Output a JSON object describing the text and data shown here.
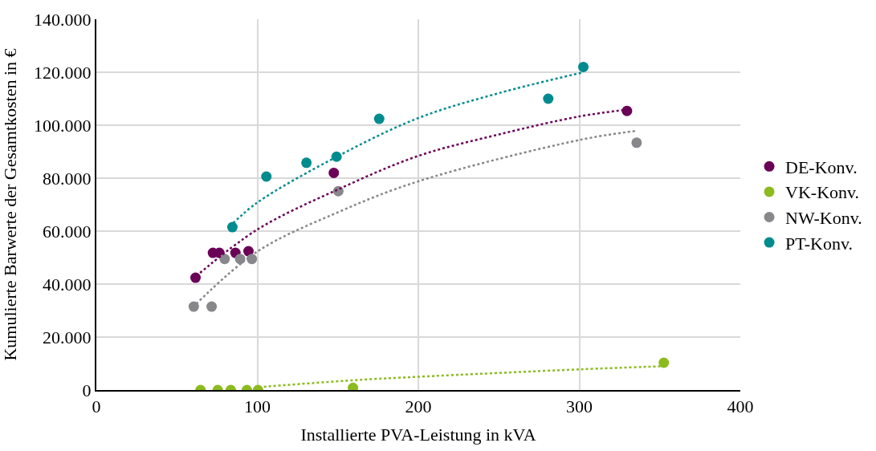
{
  "chart_data": {
    "type": "scatter",
    "xlabel": "Installierte PVA-Leistung in kVA",
    "ylabel": "Kumulierte Barwerte der Gesamtkosten in €",
    "xlim": [
      0,
      400
    ],
    "xticks": [
      0,
      100,
      200,
      300,
      400
    ],
    "ylim": [
      0,
      140000
    ],
    "yticks": [
      {
        "value": 0,
        "label": "0"
      },
      {
        "value": 20000,
        "label": "20.000"
      },
      {
        "value": 40000,
        "label": "40.000"
      },
      {
        "value": 60000,
        "label": "60.000"
      },
      {
        "value": 80000,
        "label": "80.000"
      },
      {
        "value": 100000,
        "label": "100.000"
      },
      {
        "value": 120000,
        "label": "120.000"
      },
      {
        "value": 140000,
        "label": "140.000"
      }
    ],
    "grid": true,
    "legend": "right",
    "marker": "circle",
    "series": [
      {
        "name": "DE-Konv.",
        "color": "#6b0057",
        "x": [
          61.6,
          72.4,
          76.4,
          86.4,
          94.5,
          147.5,
          329.6
        ],
        "values": [
          42400,
          51800,
          51800,
          51800,
          52400,
          82000,
          105400
        ]
      },
      {
        "name": "VK-Konv.",
        "color": "#8cbb1f",
        "x": [
          64.7,
          75.4,
          83.5,
          93.5,
          100.4,
          159.4,
          352.5
        ],
        "values": [
          0,
          0,
          0,
          0,
          0,
          800,
          10300
        ]
      },
      {
        "name": "NW-Konv.",
        "color": "#87878c",
        "x": [
          60.5,
          71.6,
          79.7,
          89.3,
          96.6,
          150.3,
          335.6
        ],
        "values": [
          31500,
          31500,
          49500,
          49500,
          49500,
          75100,
          93400
        ]
      },
      {
        "name": "PT-Konv.",
        "color": "#008b8f",
        "x": [
          84.5,
          105.6,
          130.5,
          149.2,
          175.7,
          280.7,
          302.5
        ],
        "values": [
          61500,
          80600,
          85800,
          88100,
          102400,
          110000,
          122000
        ]
      },
      {
        "type": "line",
        "color": "#6b0057",
        "line_style": "dotted",
        "marker": "none",
        "x": [
          62,
          100,
          150,
          200,
          250,
          300,
          330
        ],
        "values": [
          43000,
          60600,
          75700,
          88400,
          96500,
          103300,
          105900
        ]
      },
      {
        "type": "line",
        "color": "#8cbb1f",
        "line_style": "dotted",
        "marker": "none",
        "x": [
          101,
          160,
          200,
          300,
          353
        ],
        "values": [
          1100,
          3700,
          5000,
          7800,
          9000
        ]
      },
      {
        "type": "line",
        "color": "#87878c",
        "line_style": "dotted",
        "marker": "none",
        "x": [
          62,
          100,
          150,
          200,
          300,
          336
        ],
        "values": [
          32500,
          52300,
          67100,
          78800,
          94400,
          97900
        ]
      },
      {
        "type": "line",
        "color": "#008b8f",
        "line_style": "dotted",
        "marker": "none",
        "x": [
          85,
          100,
          150,
          200,
          250,
          302
        ],
        "values": [
          63000,
          70800,
          88300,
          102700,
          112100,
          119900
        ]
      }
    ]
  }
}
